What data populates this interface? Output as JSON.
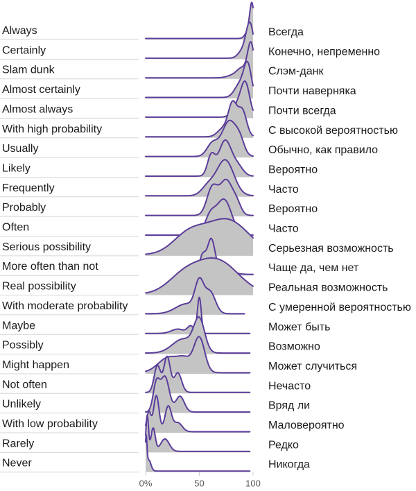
{
  "chart_data": {
    "type": "ridgeline",
    "x_axis": {
      "ticks": [
        0,
        50,
        100
      ],
      "tick_labels": [
        "0%",
        "50",
        "100"
      ],
      "xlim": [
        0,
        100
      ]
    },
    "colors": {
      "line": "#5b3d9a",
      "fill": "#c4c4c4",
      "rule": "#d6d6d6"
    },
    "rows": [
      {
        "label_en": "Always",
        "label_ru": "Всегда",
        "range": [
          0,
          100
        ],
        "peaks": [
          {
            "c": 99,
            "w": 2.0,
            "h": 1.0
          },
          {
            "c": 96,
            "w": 3,
            "h": 0.25
          }
        ]
      },
      {
        "label_en": "Certainly",
        "label_ru": "Конечно, непременно",
        "range": [
          0,
          100
        ],
        "peaks": [
          {
            "c": 97,
            "w": 3.5,
            "h": 1.0
          },
          {
            "c": 90,
            "w": 4,
            "h": 0.2
          }
        ]
      },
      {
        "label_en": "Slam dunk",
        "label_ru": "Слэм-данк",
        "range": [
          0,
          100
        ],
        "peaks": [
          {
            "c": 98,
            "w": 3,
            "h": 1.0
          },
          {
            "c": 90,
            "w": 5,
            "h": 0.3
          },
          {
            "c": 80,
            "w": 5,
            "h": 0.06
          }
        ]
      },
      {
        "label_en": "Almost certainly",
        "label_ru": "Почти наверняка",
        "range": [
          0,
          100
        ],
        "peaks": [
          {
            "c": 95,
            "w": 3.5,
            "h": 1.0
          },
          {
            "c": 88,
            "w": 5,
            "h": 0.45
          }
        ]
      },
      {
        "label_en": "Almost always",
        "label_ru": "Почти всегда",
        "range": [
          0,
          100
        ],
        "peaks": [
          {
            "c": 93,
            "w": 4,
            "h": 1.0
          },
          {
            "c": 86,
            "w": 5,
            "h": 0.4
          }
        ]
      },
      {
        "label_en": "With high probability",
        "label_ru": "С высокой вероятностью",
        "range": [
          0,
          100
        ],
        "peaks": [
          {
            "c": 81,
            "w": 4,
            "h": 1.0
          },
          {
            "c": 90,
            "w": 4,
            "h": 0.8
          },
          {
            "c": 72,
            "w": 5,
            "h": 0.25
          }
        ]
      },
      {
        "label_en": "Usually",
        "label_ru": "Обычно, как правило",
        "range": [
          0,
          100
        ],
        "peaks": [
          {
            "c": 78,
            "w": 7,
            "h": 1.0
          },
          {
            "c": 62,
            "w": 5,
            "h": 0.35
          },
          {
            "c": 88,
            "w": 4,
            "h": 0.3
          }
        ]
      },
      {
        "label_en": "Likely",
        "label_ru": "Вероятно",
        "range": [
          0,
          100
        ],
        "peaks": [
          {
            "c": 74,
            "w": 6,
            "h": 1.0
          },
          {
            "c": 61,
            "w": 3.5,
            "h": 0.55
          },
          {
            "c": 86,
            "w": 5,
            "h": 0.25
          }
        ]
      },
      {
        "label_en": "Frequently",
        "label_ru": "Часто",
        "range": [
          0,
          100
        ],
        "peaks": [
          {
            "c": 74,
            "w": 8,
            "h": 1.0
          },
          {
            "c": 58,
            "w": 6,
            "h": 0.25
          }
        ]
      },
      {
        "label_en": "Probably",
        "label_ru": "Вероятно",
        "range": [
          0,
          100
        ],
        "peaks": [
          {
            "c": 75,
            "w": 6,
            "h": 0.9
          },
          {
            "c": 62,
            "w": 5,
            "h": 0.7
          },
          {
            "c": 85,
            "w": 4,
            "h": 0.25
          }
        ]
      },
      {
        "label_en": "Often",
        "label_ru": "Часто",
        "range": [
          0,
          100
        ],
        "peaks": [
          {
            "c": 73,
            "w": 7,
            "h": 1.0
          },
          {
            "c": 60,
            "w": 5,
            "h": 0.5
          }
        ]
      },
      {
        "label_en": "Serious possibility",
        "label_ru": "Серьезная возможность",
        "range": [
          0,
          100
        ],
        "peaks": [
          {
            "c": 76,
            "w": 20,
            "h": 1.0
          },
          {
            "c": 40,
            "w": 15,
            "h": 0.55
          }
        ]
      },
      {
        "label_en": "More often than not",
        "label_ru": "Чаще да, чем нет",
        "range": [
          48,
          100
        ],
        "peaks": [
          {
            "c": 61,
            "w": 3.5,
            "h": 1.0
          },
          {
            "c": 53,
            "w": 3,
            "h": 0.55
          },
          {
            "c": 72,
            "w": 8,
            "h": 0.15
          }
        ]
      },
      {
        "label_en": "Real possibility",
        "label_ru": "Реальная возможность",
        "range": [
          0,
          100
        ],
        "peaks": [
          {
            "c": 66,
            "w": 20,
            "h": 1.0
          },
          {
            "c": 35,
            "w": 15,
            "h": 0.45
          }
        ]
      },
      {
        "label_en": "With moderate probability",
        "label_ru": "С умеренной вероятностью",
        "range": [
          0,
          92
        ],
        "peaks": [
          {
            "c": 50,
            "w": 4,
            "h": 1.0
          },
          {
            "c": 60,
            "w": 5,
            "h": 0.75
          },
          {
            "c": 38,
            "w": 10,
            "h": 0.35
          }
        ]
      },
      {
        "label_en": "Maybe",
        "label_ru": "Может быть",
        "range": [
          0,
          97
        ],
        "peaks": [
          {
            "c": 50,
            "w": 1.8,
            "h": 1.0
          },
          {
            "c": 42,
            "w": 3,
            "h": 0.2
          },
          {
            "c": 30,
            "w": 6,
            "h": 0.12
          }
        ]
      },
      {
        "label_en": "Possibly",
        "label_ru": "Возможно",
        "range": [
          0,
          97
        ],
        "peaks": [
          {
            "c": 50,
            "w": 5,
            "h": 1.0
          },
          {
            "c": 35,
            "w": 10,
            "h": 0.45
          }
        ]
      },
      {
        "label_en": "Might happen",
        "label_ru": "Может случиться",
        "range": [
          0,
          97
        ],
        "peaks": [
          {
            "c": 50,
            "w": 5,
            "h": 1.0
          },
          {
            "c": 22,
            "w": 10,
            "h": 0.45
          },
          {
            "c": 37,
            "w": 6,
            "h": 0.3
          }
        ]
      },
      {
        "label_en": "Not often",
        "label_ru": "Нечасто",
        "range": [
          0,
          97
        ],
        "peaks": [
          {
            "c": 20,
            "w": 3,
            "h": 1.0
          },
          {
            "c": 11,
            "w": 3,
            "h": 0.75
          },
          {
            "c": 30,
            "w": 3.5,
            "h": 0.55
          }
        ]
      },
      {
        "label_en": "Unlikely",
        "label_ru": "Вряд ли",
        "range": [
          0,
          97
        ],
        "peaks": [
          {
            "c": 18,
            "w": 4,
            "h": 1.0
          },
          {
            "c": 10,
            "w": 3,
            "h": 0.8
          },
          {
            "c": 32,
            "w": 4,
            "h": 0.45
          }
        ]
      },
      {
        "label_en": "With low probability",
        "label_ru": "Маловероятно",
        "range": [
          0,
          97
        ],
        "peaks": [
          {
            "c": 10,
            "w": 2.5,
            "h": 1.0
          },
          {
            "c": 21,
            "w": 3,
            "h": 0.7
          },
          {
            "c": 3,
            "w": 2,
            "h": 0.55
          },
          {
            "c": 30,
            "w": 4,
            "h": 0.25
          }
        ]
      },
      {
        "label_en": "Rarely",
        "label_ru": "Редко",
        "range": [
          0,
          97
        ],
        "peaks": [
          {
            "c": 1.5,
            "w": 1.2,
            "h": 1.0
          },
          {
            "c": 7,
            "w": 2,
            "h": 0.65
          },
          {
            "c": 18,
            "w": 4,
            "h": 0.35
          }
        ]
      },
      {
        "label_en": "Never",
        "label_ru": "Никогда",
        "range": [
          0,
          97
        ],
        "peaks": [
          {
            "c": 0.5,
            "w": 0.8,
            "h": 1.0
          },
          {
            "c": 3,
            "w": 2,
            "h": 0.35
          }
        ]
      }
    ]
  }
}
